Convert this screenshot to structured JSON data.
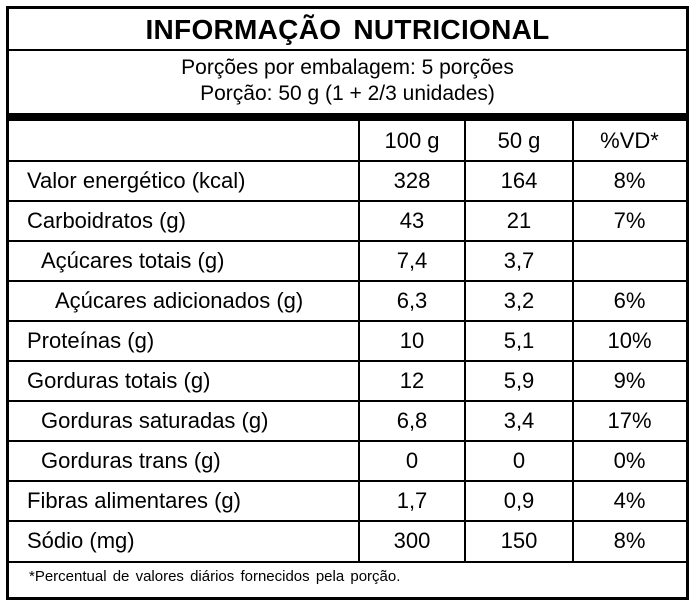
{
  "title": "INFORMAÇÃO NUTRICIONAL",
  "servings_per_package": "Porções por embalagem: 5 porções",
  "serving_size": "Porção: 50 g (1 + 2/3 unidades)",
  "columns": [
    "",
    "100 g",
    "50 g",
    "%VD*"
  ],
  "rows": [
    {
      "name": "Valor energético (kcal)",
      "per100": "328",
      "per50": "164",
      "vd": "8%",
      "indent": 0
    },
    {
      "name": "Carboidratos (g)",
      "per100": "43",
      "per50": "21",
      "vd": "7%",
      "indent": 0
    },
    {
      "name": "Açúcares totais (g)",
      "per100": "7,4",
      "per50": "3,7",
      "vd": "",
      "indent": 1
    },
    {
      "name": "Açúcares adicionados (g)",
      "per100": "6,3",
      "per50": "3,2",
      "vd": "6%",
      "indent": 2
    },
    {
      "name": "Proteínas (g)",
      "per100": "10",
      "per50": "5,1",
      "vd": "10%",
      "indent": 0
    },
    {
      "name": "Gorduras totais (g)",
      "per100": "12",
      "per50": "5,9",
      "vd": "9%",
      "indent": 0
    },
    {
      "name": "Gorduras saturadas (g)",
      "per100": "6,8",
      "per50": "3,4",
      "vd": "17%",
      "indent": 1
    },
    {
      "name": "Gorduras trans (g)",
      "per100": "0",
      "per50": "0",
      "vd": "0%",
      "indent": 1
    },
    {
      "name": "Fibras alimentares (g)",
      "per100": "1,7",
      "per50": "0,9",
      "vd": "4%",
      "indent": 0
    },
    {
      "name": "Sódio (mg)",
      "per100": "300",
      "per50": "150",
      "vd": "8%",
      "indent": 0
    }
  ],
  "footnote": "*Percentual de valores diários fornecidos pela porção."
}
